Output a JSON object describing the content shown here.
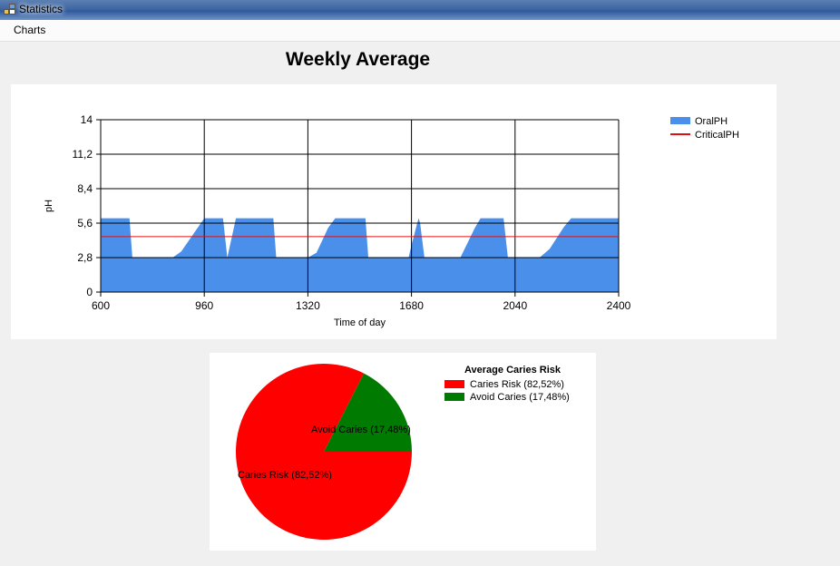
{
  "window": {
    "title": "Statistics",
    "icon": "app-window-icon"
  },
  "menu": {
    "items": [
      "Charts"
    ]
  },
  "page": {
    "title": "Weekly Average"
  },
  "colors": {
    "oral": "#4a8fea",
    "critical": "#e01010",
    "risk": "#ff0000",
    "avoid": "#007a00",
    "grid": "#000000"
  },
  "chart_data": [
    {
      "type": "area",
      "title": "",
      "xlabel": "Time of day",
      "ylabel": "pH",
      "xlim": [
        600,
        2400
      ],
      "ylim": [
        0,
        14
      ],
      "xticks": [
        "600",
        "960",
        "1320",
        "1680",
        "2040",
        "2400"
      ],
      "yticks": [
        "0",
        "2,8",
        "5,6",
        "8,4",
        "11,2",
        "14"
      ],
      "grid": true,
      "legend_position": "top-right",
      "series": [
        {
          "name": "OralPH",
          "kind": "area",
          "x": [
            600,
            700,
            710,
            850,
            880,
            960,
            1025,
            1040,
            1070,
            1080,
            1200,
            1210,
            1320,
            1350,
            1390,
            1415,
            1520,
            1530,
            1670,
            1680,
            1700,
            1705,
            1710,
            1725,
            1730,
            1850,
            1900,
            1920,
            2000,
            2015,
            2040,
            2075,
            2125,
            2160,
            2210,
            2235,
            2400
          ],
          "y": [
            6.0,
            6.0,
            2.8,
            2.8,
            3.3,
            6.0,
            6.0,
            2.8,
            6.0,
            6.0,
            6.0,
            2.8,
            2.8,
            3.2,
            5.2,
            6.0,
            6.0,
            2.8,
            2.8,
            3.8,
            5.6,
            6.0,
            5.6,
            2.8,
            2.8,
            2.8,
            5.2,
            6.0,
            6.0,
            2.8,
            2.8,
            2.8,
            2.8,
            3.5,
            5.3,
            6.0,
            6.0
          ]
        },
        {
          "name": "CriticalPH",
          "kind": "line",
          "x": [
            600,
            2400
          ],
          "y": [
            4.5,
            4.5
          ]
        }
      ]
    },
    {
      "type": "pie",
      "title": "Average Caries Risk",
      "legend_position": "right",
      "slices": [
        {
          "label": "Caries Risk (82,52%)",
          "value": 82.52,
          "color": "#ff0000"
        },
        {
          "label": "Avoid Caries (17,48%)",
          "value": 17.48,
          "color": "#007a00"
        }
      ]
    }
  ]
}
